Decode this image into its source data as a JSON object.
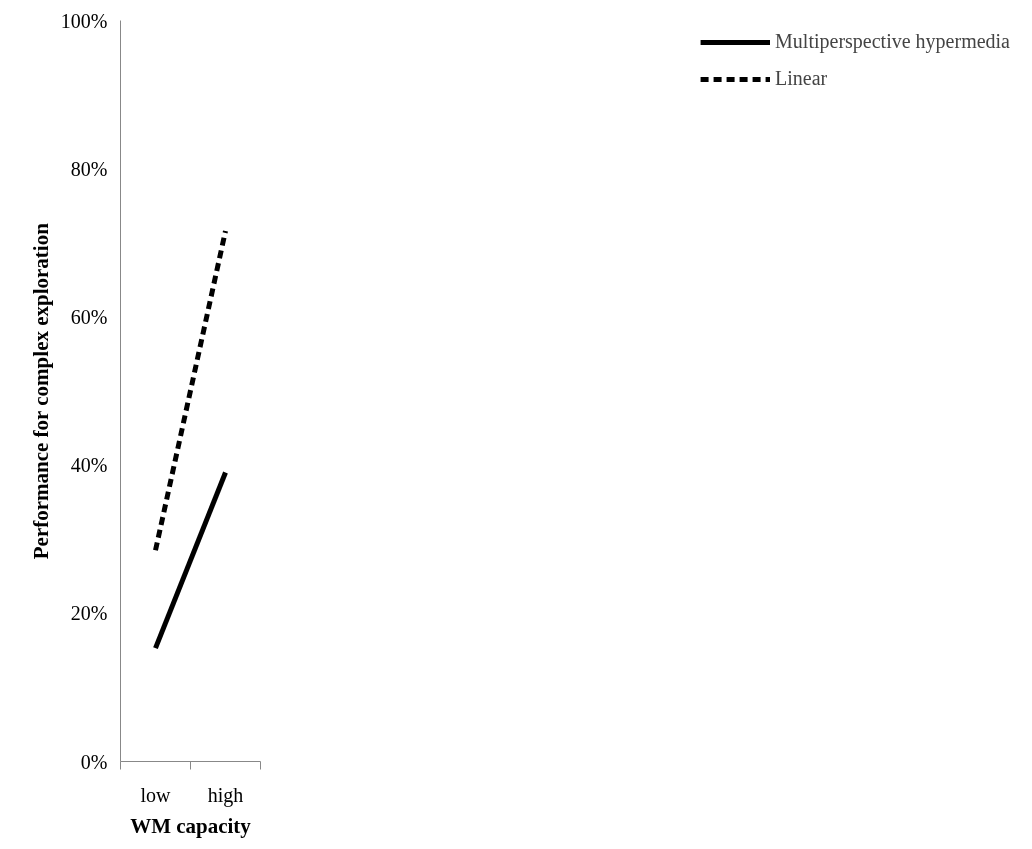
{
  "chart_data": {
    "type": "line",
    "xlabel": "WM capacity",
    "ylabel": "Performance for complex exploration",
    "categories": [
      "low",
      "high"
    ],
    "series": [
      {
        "name": "Multiperspective hypermedia",
        "color": "#000000",
        "values": [
          15.3,
          39.0
        ],
        "line_style": "solid"
      },
      {
        "name": "Linear",
        "color": "#000000",
        "values": [
          28.5,
          71.6
        ],
        "line_style": "dashed"
      }
    ],
    "ylim": [
      0,
      100
    ],
    "yticks": [
      {
        "value": 0,
        "label": "0%"
      },
      {
        "value": 20,
        "label": "20%"
      },
      {
        "value": 40,
        "label": "40%"
      },
      {
        "value": 60,
        "label": "60%"
      },
      {
        "value": 80,
        "label": "80%"
      },
      {
        "value": 100,
        "label": "100%"
      }
    ],
    "grid": false,
    "legend": "right",
    "marker": "none"
  }
}
